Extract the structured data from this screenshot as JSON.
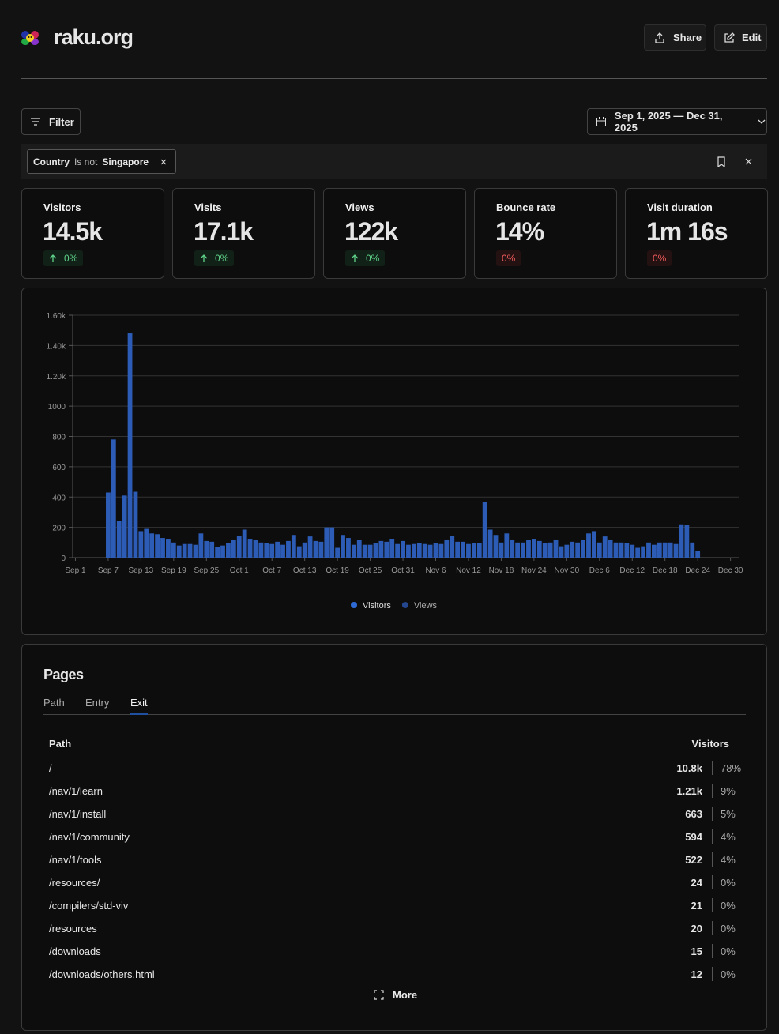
{
  "header": {
    "title": "raku.org",
    "buttons": [
      "Share",
      "Edit"
    ]
  },
  "toolbar": {
    "filter_button": "Filter",
    "date_range": "Sep 1, 2025 — Dec 31, 2025"
  },
  "filter": {
    "field": "Country",
    "operator": "Is not",
    "value": "Singapore"
  },
  "stats": [
    {
      "label": "Visitors",
      "value": "14.5k",
      "change": "0%",
      "trend": "up"
    },
    {
      "label": "Visits",
      "value": "17.1k",
      "change": "0%",
      "trend": "up"
    },
    {
      "label": "Views",
      "value": "122k",
      "change": "0%",
      "trend": "up"
    },
    {
      "label": "Bounce rate",
      "value": "14%",
      "change": "0%",
      "trend": "down"
    },
    {
      "label": "Visit duration",
      "value": "1m 16s",
      "change": "0%",
      "trend": "down"
    }
  ],
  "chart_data": {
    "type": "bar",
    "categories": [
      "Sep 1",
      null,
      null,
      null,
      null,
      null,
      "Sep 7",
      null,
      null,
      null,
      null,
      null,
      "Sep 13",
      null,
      null,
      null,
      null,
      null,
      "Sep 19",
      null,
      null,
      null,
      null,
      null,
      "Sep 25",
      null,
      null,
      null,
      null,
      null,
      "Oct 1",
      null,
      null,
      null,
      null,
      null,
      "Oct 7",
      null,
      null,
      null,
      null,
      null,
      "Oct 13",
      null,
      null,
      null,
      null,
      null,
      "Oct 19",
      null,
      null,
      null,
      null,
      null,
      "Oct 25",
      null,
      null,
      null,
      null,
      null,
      "Oct 31",
      null,
      null,
      null,
      null,
      null,
      "Nov 6",
      null,
      null,
      null,
      null,
      null,
      "Nov 12",
      null,
      null,
      null,
      null,
      null,
      "Nov 18",
      null,
      null,
      null,
      null,
      null,
      "Nov 24",
      null,
      null,
      null,
      null,
      null,
      "Nov 30",
      null,
      null,
      null,
      null,
      null,
      "Dec 6",
      null,
      null,
      null,
      null,
      null,
      "Dec 12",
      null,
      null,
      null,
      null,
      null,
      "Dec 18",
      null,
      null,
      null,
      null,
      null,
      "Dec 24",
      null,
      null,
      null,
      null,
      null,
      "Dec 30",
      null
    ],
    "series": [
      {
        "name": "Visitors",
        "color": "#2c5cb5",
        "values": [
          0,
          0,
          0,
          0,
          0,
          0,
          430,
          780,
          240,
          410,
          1480,
          435,
          175,
          190,
          160,
          155,
          130,
          125,
          100,
          80,
          90,
          90,
          85,
          160,
          110,
          105,
          70,
          80,
          95,
          120,
          145,
          185,
          125,
          115,
          100,
          95,
          90,
          105,
          85,
          110,
          150,
          75,
          100,
          140,
          110,
          105,
          200,
          200,
          65,
          150,
          130,
          85,
          115,
          85,
          85,
          95,
          110,
          105,
          125,
          90,
          110,
          85,
          90,
          95,
          90,
          85,
          95,
          90,
          120,
          145,
          105,
          105,
          90,
          95,
          95,
          370,
          185,
          150,
          100,
          160,
          120,
          100,
          100,
          115,
          125,
          110,
          95,
          100,
          120,
          75,
          85,
          105,
          100,
          120,
          160,
          175,
          100,
          140,
          120,
          100,
          100,
          95,
          85,
          65,
          75,
          100,
          85,
          100,
          100,
          100,
          90,
          220,
          215,
          100,
          45,
          0,
          0,
          0,
          0,
          0,
          0,
          0
        ]
      }
    ],
    "legend": [
      {
        "name": "Visitors",
        "color": "#2f6bd6"
      },
      {
        "name": "Views",
        "color": "#24478f"
      }
    ],
    "ylim": [
      0,
      1600
    ],
    "yticks": [
      0,
      200,
      400,
      600,
      800,
      1000,
      {
        "value": 1200,
        "label": "1.20k"
      },
      {
        "value": 1400,
        "label": "1.40k"
      },
      {
        "value": 1600,
        "label": "1.60k"
      }
    ],
    "grid": true
  },
  "pages": {
    "title": "Pages",
    "tabs": [
      "Path",
      "Entry",
      "Exit"
    ],
    "active_tab": 2,
    "columns": [
      "Path",
      "Visitors"
    ],
    "rows": [
      [
        "/",
        "10.8k",
        "78%"
      ],
      [
        "/nav/1/learn",
        "1.21k",
        "9%"
      ],
      [
        "/nav/1/install",
        "663",
        "5%"
      ],
      [
        "/nav/1/community",
        "594",
        "4%"
      ],
      [
        "/nav/1/tools",
        "522",
        "4%"
      ],
      [
        "/resources/",
        "24",
        "0%"
      ],
      [
        "/compilers/std-viv",
        "21",
        "0%"
      ],
      [
        "/resources",
        "20",
        "0%"
      ],
      [
        "/downloads",
        "15",
        "0%"
      ],
      [
        "/downloads/others.html",
        "12",
        "0%"
      ]
    ],
    "more": "More"
  }
}
